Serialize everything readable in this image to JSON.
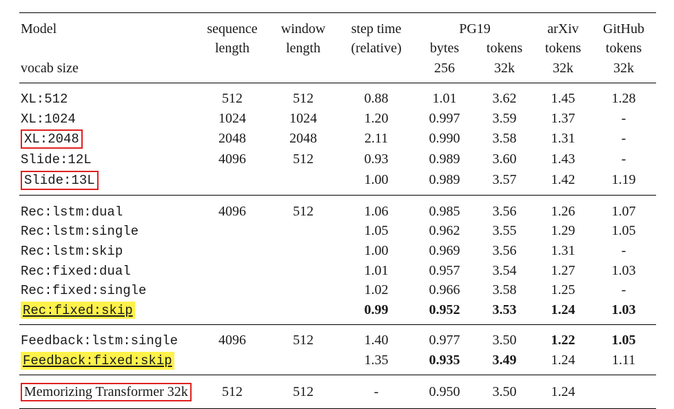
{
  "header": {
    "model_label": "Model",
    "vocab_label": "vocab size",
    "seq_top": "sequence",
    "seq_bot": "length",
    "win_top": "window",
    "win_bot": "length",
    "step_top": "step time",
    "step_bot": "(relative)",
    "pg19_top": "PG19",
    "pg19_bytes": "bytes",
    "pg19_bytes2": "256",
    "pg19_tokens": "tokens",
    "pg19_tokens2": "32k",
    "arxiv_top": "arXiv",
    "arxiv_tokens": "tokens",
    "arxiv_tokens2": "32k",
    "github_top": "GitHub",
    "github_tokens": "tokens",
    "github_tokens2": "32k"
  },
  "groups": [
    {
      "rows": [
        {
          "model": "XL:512",
          "mono": true,
          "seq": "512",
          "win": "512",
          "step": "0.88",
          "pgb": "1.01",
          "pgt": "3.62",
          "arx": "1.45",
          "gh": "1.28"
        },
        {
          "model": "XL:1024",
          "mono": true,
          "seq": "1024",
          "win": "1024",
          "step": "1.20",
          "pgb": "0.997",
          "pgt": "3.59",
          "arx": "1.37",
          "gh": "-"
        },
        {
          "model": "XL:2048",
          "mono": true,
          "box": true,
          "seq": "2048",
          "win": "2048",
          "step": "2.11",
          "pgb": "0.990",
          "pgt": "3.58",
          "arx": "1.31",
          "gh": "-"
        },
        {
          "model": "Slide:12L",
          "mono": true,
          "seq": "4096",
          "win": "512",
          "step": "0.93",
          "pgb": "0.989",
          "pgt": "3.60",
          "arx": "1.43",
          "gh": "-"
        },
        {
          "model": "Slide:13L",
          "mono": true,
          "box": true,
          "seq": "",
          "win": "",
          "step": "1.00",
          "pgb": "0.989",
          "pgt": "3.57",
          "arx": "1.42",
          "gh": "1.19"
        }
      ]
    },
    {
      "rows": [
        {
          "model": "Rec:lstm:dual",
          "mono": true,
          "seq": "4096",
          "win": "512",
          "step": "1.06",
          "pgb": "0.985",
          "pgt": "3.56",
          "arx": "1.26",
          "gh": "1.07"
        },
        {
          "model": "Rec:lstm:single",
          "mono": true,
          "seq": "",
          "win": "",
          "step": "1.05",
          "pgb": "0.962",
          "pgt": "3.55",
          "arx": "1.29",
          "gh": "1.05"
        },
        {
          "model": "Rec:lstm:skip",
          "mono": true,
          "seq": "",
          "win": "",
          "step": "1.00",
          "pgb": "0.969",
          "pgt": "3.56",
          "arx": "1.31",
          "gh": "-"
        },
        {
          "model": "Rec:fixed:dual",
          "mono": true,
          "seq": "",
          "win": "",
          "step": "1.01",
          "pgb": "0.957",
          "pgt": "3.54",
          "arx": "1.27",
          "gh": "1.03"
        },
        {
          "model": "Rec:fixed:single",
          "mono": true,
          "seq": "",
          "win": "",
          "step": "1.02",
          "pgb": "0.966",
          "pgt": "3.58",
          "arx": "1.25",
          "gh": "-"
        },
        {
          "model": "Rec:fixed:skip",
          "mono": true,
          "hl": true,
          "seq": "",
          "win": "",
          "step": "0.99",
          "pgb": "0.952",
          "pgt": "3.53",
          "arx": "1.24",
          "gh": "1.03",
          "bold": {
            "step": true,
            "pgb": true,
            "pgt": true,
            "arx": true,
            "gh": true
          }
        }
      ]
    },
    {
      "rows": [
        {
          "model": "Feedback:lstm:single",
          "mono": true,
          "seq": "4096",
          "win": "512",
          "step": "1.40",
          "pgb": "0.977",
          "pgt": "3.50",
          "arx": "1.22",
          "gh": "1.05",
          "bold": {
            "arx": true,
            "gh": true
          }
        },
        {
          "model": "Feedback:fixed:skip",
          "mono": true,
          "hl": true,
          "seq": "",
          "win": "",
          "step": "1.35",
          "pgb": "0.935",
          "pgt": "3.49",
          "arx": "1.24",
          "gh": "1.11",
          "bold": {
            "pgb": true,
            "pgt": true
          }
        }
      ]
    },
    {
      "rows": [
        {
          "model": "Memorizing Transformer 32k",
          "mono": false,
          "box": true,
          "seq": "512",
          "win": "512",
          "step": "-",
          "pgb": "0.950",
          "pgt": "3.50",
          "arx": "1.24",
          "gh": ""
        }
      ]
    }
  ],
  "style": {
    "highlight_color": "#fff24a",
    "box_color": "#e02020",
    "text_color": "#1a1a1a"
  }
}
